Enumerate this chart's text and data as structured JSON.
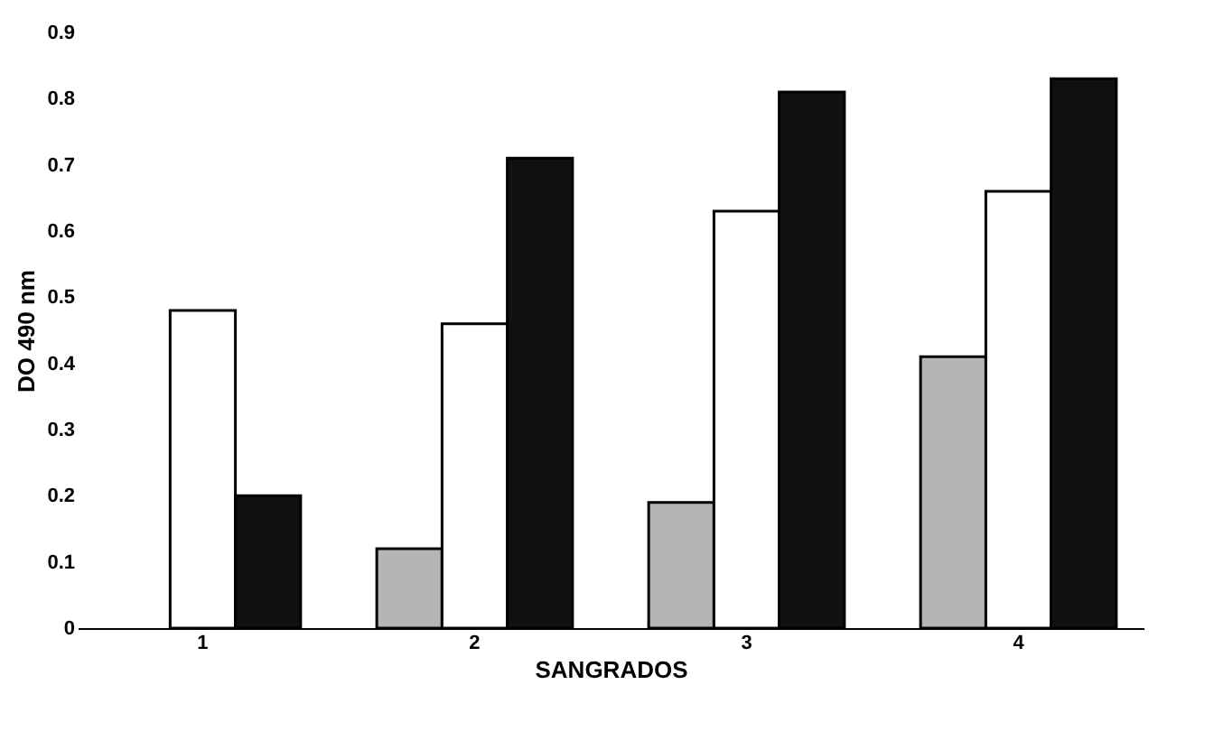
{
  "chart_data": {
    "type": "bar",
    "xlabel": "SANGRADOS",
    "ylabel": "DO 490 nm",
    "categories": [
      "1",
      "2",
      "3",
      "4"
    ],
    "series": [
      {
        "color": "#b5b5b5",
        "values": [
          null,
          0.12,
          0.19,
          0.41
        ]
      },
      {
        "color": "#ffffff",
        "values": [
          0.48,
          0.46,
          0.63,
          0.66
        ]
      },
      {
        "color": "#111111",
        "values": [
          0.2,
          0.71,
          0.81,
          0.83
        ]
      }
    ],
    "ylim": [
      0,
      0.9
    ],
    "yticks": [
      0,
      0.1,
      0.2,
      0.3,
      0.4,
      0.5,
      0.6,
      0.7,
      0.8,
      0.9
    ],
    "grid": false
  }
}
